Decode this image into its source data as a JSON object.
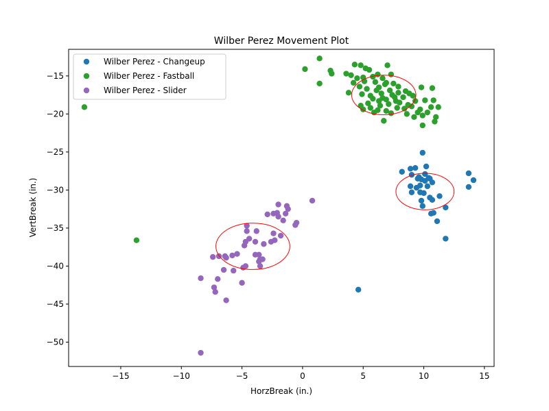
{
  "chart_data": {
    "type": "scatter",
    "title": "Wilber Perez Movement Plot",
    "xlabel": "HorzBreak (in.)",
    "ylabel": "VertBreak (in.)",
    "xlim": [
      -19.3,
      15.8
    ],
    "ylim": [
      -53.2,
      -11.5
    ],
    "xticks": [
      -15,
      -10,
      -5,
      0,
      5,
      10,
      15
    ],
    "yticks": [
      -50,
      -45,
      -40,
      -35,
      -30,
      -25,
      -20,
      -15
    ],
    "grid": false,
    "legend_position": "top-left",
    "ellipse_color": "#ff0000",
    "series": [
      {
        "name": "Wilber Perez - Changeup",
        "color": "#1f77b4",
        "points": [
          [
            8.2,
            -27.6
          ],
          [
            8.9,
            -27.2
          ],
          [
            9.3,
            -27.1
          ],
          [
            9.0,
            -28.0
          ],
          [
            9.6,
            -28.3
          ],
          [
            9.8,
            -28.6
          ],
          [
            9.9,
            -25.1
          ],
          [
            10.2,
            -26.9
          ],
          [
            10.1,
            -27.9
          ],
          [
            10.4,
            -28.4
          ],
          [
            10.3,
            -29.5
          ],
          [
            9.7,
            -29.4
          ],
          [
            10.7,
            -29.0
          ],
          [
            9.4,
            -29.7
          ],
          [
            8.9,
            -29.5
          ],
          [
            9.0,
            -30.3
          ],
          [
            9.7,
            -30.3
          ],
          [
            10.0,
            -30.4
          ],
          [
            9.8,
            -31.4
          ],
          [
            10.5,
            -31.0
          ],
          [
            10.7,
            -31.3
          ],
          [
            11.3,
            -30.8
          ],
          [
            9.9,
            -32.1
          ],
          [
            11.8,
            -32.3
          ],
          [
            10.6,
            -33.1
          ],
          [
            10.8,
            -33.0
          ],
          [
            11.1,
            -34.1
          ],
          [
            11.8,
            -36.4
          ],
          [
            13.7,
            -27.8
          ],
          [
            14.1,
            -28.7
          ],
          [
            13.7,
            -29.6
          ],
          [
            9.5,
            -28.5
          ],
          [
            10.1,
            -28.8
          ],
          [
            10.5,
            -28.5
          ],
          [
            4.6,
            -43.1
          ]
        ]
      },
      {
        "name": "Wilber Perez - Fastball",
        "color": "#2ca02c",
        "points": [
          [
            1.4,
            -12.7
          ],
          [
            4.3,
            -13.5
          ],
          [
            4.8,
            -13.6
          ],
          [
            7.0,
            -13.6
          ],
          [
            0.2,
            -14.1
          ],
          [
            2.3,
            -14.3
          ],
          [
            5.2,
            -14.0
          ],
          [
            5.5,
            -14.2
          ],
          [
            2.4,
            -14.7
          ],
          [
            3.6,
            -14.7
          ],
          [
            4.0,
            -14.9
          ],
          [
            6.2,
            -14.8
          ],
          [
            7.3,
            -14.8
          ],
          [
            4.5,
            -15.3
          ],
          [
            5.0,
            -15.2
          ],
          [
            5.8,
            -15.1
          ],
          [
            6.6,
            -15.3
          ],
          [
            1.4,
            -16.0
          ],
          [
            4.2,
            -15.9
          ],
          [
            4.7,
            -16.4
          ],
          [
            6.0,
            -15.8
          ],
          [
            6.8,
            -16.1
          ],
          [
            7.5,
            -16.0
          ],
          [
            5.3,
            -16.7
          ],
          [
            6.3,
            -16.5
          ],
          [
            7.2,
            -16.9
          ],
          [
            9.8,
            -16.5
          ],
          [
            10.7,
            -16.6
          ],
          [
            3.8,
            -17.2
          ],
          [
            4.9,
            -17.4
          ],
          [
            5.6,
            -17.6
          ],
          [
            6.5,
            -17.3
          ],
          [
            7.9,
            -17.2
          ],
          [
            8.8,
            -17.3
          ],
          [
            5.8,
            -18.0
          ],
          [
            6.9,
            -18.1
          ],
          [
            7.6,
            -17.8
          ],
          [
            8.3,
            -17.8
          ],
          [
            9.1,
            -17.6
          ],
          [
            4.8,
            -18.9
          ],
          [
            5.4,
            -18.6
          ],
          [
            6.3,
            -18.3
          ],
          [
            7.1,
            -18.7
          ],
          [
            8.0,
            -18.5
          ],
          [
            9.3,
            -18.3
          ],
          [
            10.1,
            -18.2
          ],
          [
            10.8,
            -18.2
          ],
          [
            5.0,
            -19.4
          ],
          [
            5.6,
            -19.2
          ],
          [
            6.2,
            -19.5
          ],
          [
            6.9,
            -19.6
          ],
          [
            7.8,
            -19.2
          ],
          [
            8.4,
            -19.3
          ],
          [
            9.0,
            -19.0
          ],
          [
            9.7,
            -19.4
          ],
          [
            10.6,
            -19.1
          ],
          [
            11.2,
            -19.1
          ],
          [
            8.6,
            -20.0
          ],
          [
            9.2,
            -20.4
          ],
          [
            9.9,
            -20.2
          ],
          [
            10.3,
            -19.8
          ],
          [
            11.0,
            -20.4
          ],
          [
            6.7,
            -20.9
          ],
          [
            10.9,
            -21.0
          ],
          [
            9.9,
            -21.5
          ],
          [
            -18.0,
            -19.1
          ],
          [
            -13.7,
            -36.6
          ],
          [
            6.1,
            -16.9
          ],
          [
            7.4,
            -17.5
          ],
          [
            8.7,
            -18.8
          ],
          [
            5.9,
            -19.8
          ],
          [
            6.6,
            -17.9
          ],
          [
            7.9,
            -16.4
          ],
          [
            8.5,
            -17.0
          ],
          [
            5.1,
            -15.7
          ],
          [
            6.9,
            -15.9
          ],
          [
            7.7,
            -18.3
          ],
          [
            9.5,
            -19.8
          ],
          [
            6.4,
            -18.9
          ],
          [
            7.3,
            -19.9
          ]
        ]
      },
      {
        "name": "Wilber Perez - Slider",
        "color": "#9467bd",
        "points": [
          [
            0.8,
            -31.4
          ],
          [
            -2.0,
            -31.9
          ],
          [
            -1.3,
            -32.1
          ],
          [
            -1.2,
            -32.5
          ],
          [
            -2.1,
            -33.0
          ],
          [
            -2.4,
            -33.1
          ],
          [
            -2.9,
            -33.2
          ],
          [
            -1.4,
            -33.1
          ],
          [
            -2.0,
            -33.5
          ],
          [
            -1.6,
            -34.0
          ],
          [
            -0.5,
            -34.3
          ],
          [
            -0.6,
            -34.6
          ],
          [
            -4.6,
            -34.7
          ],
          [
            -3.8,
            -35.4
          ],
          [
            -4.6,
            -35.4
          ],
          [
            -2.4,
            -35.7
          ],
          [
            -1.8,
            -36.0
          ],
          [
            -4.4,
            -36.4
          ],
          [
            -4.7,
            -36.8
          ],
          [
            -2.3,
            -36.6
          ],
          [
            -2.6,
            -36.8
          ],
          [
            -3.9,
            -36.8
          ],
          [
            -3.2,
            -37.1
          ],
          [
            -4.8,
            -37.3
          ],
          [
            -5.4,
            -38.4
          ],
          [
            -5.8,
            -38.6
          ],
          [
            -3.9,
            -38.5
          ],
          [
            -3.6,
            -38.5
          ],
          [
            -6.4,
            -38.7
          ],
          [
            -6.3,
            -38.9
          ],
          [
            -6.9,
            -38.7
          ],
          [
            -7.4,
            -38.8
          ],
          [
            -3.5,
            -39.1
          ],
          [
            -3.3,
            -39.1
          ],
          [
            -3.6,
            -39.4
          ],
          [
            -3.5,
            -40.0
          ],
          [
            -4.9,
            -40.2
          ],
          [
            -4.7,
            -40.0
          ],
          [
            -6.5,
            -40.5
          ],
          [
            -5.7,
            -40.6
          ],
          [
            -8.4,
            -41.6
          ],
          [
            -7.0,
            -41.7
          ],
          [
            -5.0,
            -42.2
          ],
          [
            -7.3,
            -42.8
          ],
          [
            -7.2,
            -43.4
          ],
          [
            -6.3,
            -44.5
          ],
          [
            -8.4,
            -51.4
          ]
        ]
      }
    ],
    "ellipses": [
      {
        "series": "Wilber Perez - Changeup",
        "cx": 10.1,
        "cy": -30.2,
        "rx": 2.4,
        "ry": 2.4
      },
      {
        "series": "Wilber Perez - Fastball",
        "cx": 6.7,
        "cy": -17.5,
        "rx": 2.65,
        "ry": 2.6
      },
      {
        "series": "Wilber Perez - Slider",
        "cx": -4.1,
        "cy": -37.4,
        "rx": 3.05,
        "ry": 3.05
      }
    ]
  }
}
